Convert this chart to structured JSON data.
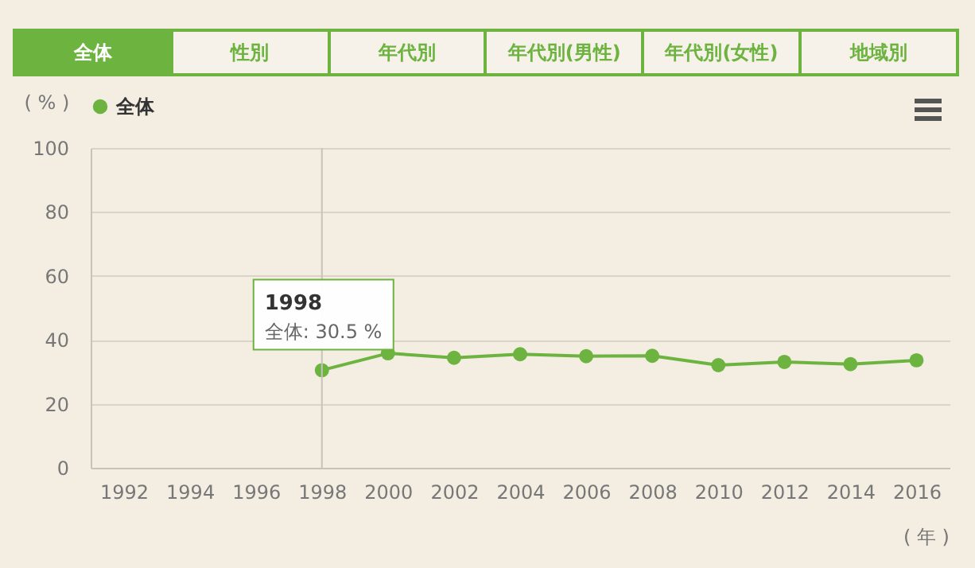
{
  "chart_data": {
    "type": "line",
    "xlabel": "( 年 )",
    "ylabel": "( % )",
    "x": [
      1998,
      2000,
      2002,
      2004,
      2006,
      2008,
      2010,
      2012,
      2014,
      2016
    ],
    "series": [
      {
        "name": "全体",
        "color": "#6db33f",
        "values": [
          30.5,
          35.8,
          34.4,
          35.5,
          34.9,
          35.0,
          32.1,
          33.1,
          32.4,
          33.6
        ]
      }
    ],
    "xlim": [
      1991,
      2017
    ],
    "xticks": [
      1992,
      1994,
      1996,
      1998,
      2000,
      2002,
      2004,
      2006,
      2008,
      2010,
      2012,
      2014,
      2016
    ],
    "ylim": [
      0,
      100
    ],
    "yticks": [
      0,
      20,
      40,
      60,
      80,
      100
    ],
    "grid": "y",
    "legend": "top left",
    "marker": "circle",
    "line_style": "solid",
    "ref_lines": [
      {
        "axis": "x",
        "value": 1998,
        "color": "#c8c2b8"
      }
    ],
    "annotations": [
      "全体",
      "性別",
      "年代別",
      "年代別(男性)",
      "年代別(女性)",
      "地域別",
      {
        "text": "1998",
        "x": 1998,
        "y": 30.5
      },
      {
        "text": "全体: 30.5 %",
        "x": 1998,
        "y": 30.5
      }
    ]
  }
}
